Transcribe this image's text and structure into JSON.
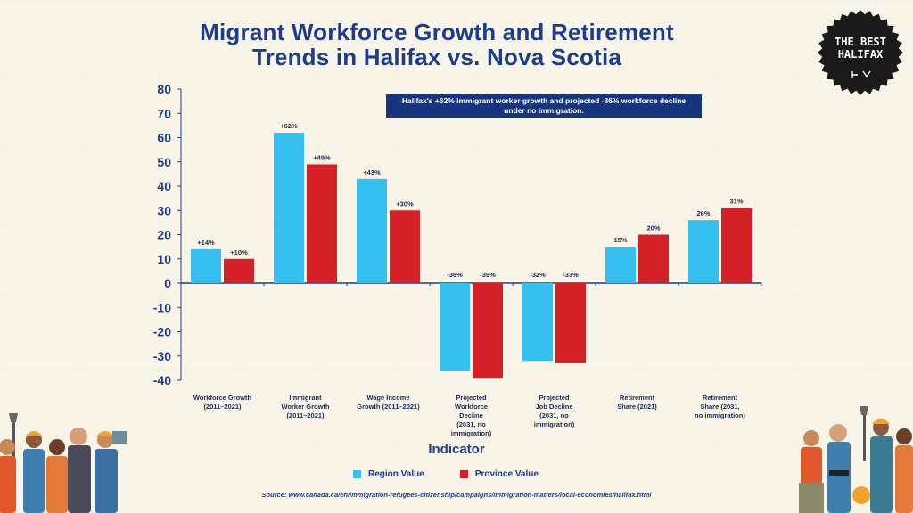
{
  "title_line1": "Migrant Workforce Growth and Retirement",
  "title_line2": "Trends in Halifax vs. Nova Scotia",
  "badge": {
    "line1": "THE BEST",
    "line2": "HALIFAX"
  },
  "callout_text": "Halifax's +62% immigrant worker growth and projected -36% workforce decline under no immigration.",
  "xaxis_title": "Indicator",
  "legend": [
    {
      "label": "Region Value",
      "color": "#35c0ef"
    },
    {
      "label": "Province Value",
      "color": "#d42128"
    }
  ],
  "source": "Source: www.canada.ca/en/immigration-refugees-citizenship/campaigns/immigration-matters/local-economies/halifax.html",
  "chart_data": {
    "type": "bar",
    "ylim": [
      -40,
      80
    ],
    "yticks": [
      80,
      70,
      60,
      50,
      40,
      30,
      20,
      10,
      0,
      -10,
      -20,
      -30,
      -40
    ],
    "categories": [
      [
        "Workforce Growth",
        "(2011–2021)"
      ],
      [
        "Immigrant",
        "Worker Growth",
        "(2011–2021)"
      ],
      [
        "Wage Income",
        "Growth (2011–2021)"
      ],
      [
        "Projected",
        "Workforce",
        "Decline",
        "(2031, no",
        "immigration)"
      ],
      [
        "Projected",
        "Job Decline",
        "(2031, no",
        "immigration)"
      ],
      [
        "Retirement",
        "Share (2021)"
      ],
      [
        "Retirement",
        "Share (2031,",
        "no immigration)"
      ]
    ],
    "series": [
      {
        "name": "Region Value",
        "color": "#35c0ef",
        "values": [
          14,
          62,
          43,
          -36,
          -32,
          15,
          26
        ],
        "labels": [
          "+14%",
          "+62%",
          "+43%",
          "-36%",
          "-32%",
          "15%",
          "26%"
        ]
      },
      {
        "name": "Province Value",
        "color": "#d42128",
        "values": [
          10,
          49,
          30,
          -39,
          -33,
          20,
          31
        ],
        "labels": [
          "+10%",
          "+49%",
          "+30%",
          "-39%",
          "-33%",
          "20%",
          "31%"
        ]
      }
    ]
  }
}
